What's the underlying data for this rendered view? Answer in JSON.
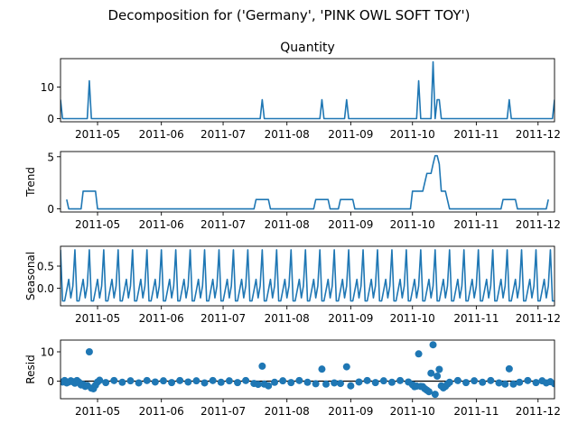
{
  "figure": {
    "suptitle": "Decomposition for ('Germany', 'PINK OWL SOFT TOY')"
  },
  "colors": {
    "series": "#1f77b4",
    "axis": "#000000",
    "resid_baseline": "#000000"
  },
  "chart_data": [
    {
      "type": "line",
      "title": "Quantity",
      "ylabel": "",
      "xlim": [
        "2011-04-13",
        "2011-12-09"
      ],
      "ylim": [
        -1,
        19
      ],
      "yticks": [
        0,
        10
      ],
      "xticks": [
        "2011-05-01",
        "2011-06-01",
        "2011-07-01",
        "2011-08-01",
        "2011-09-01",
        "2011-10-01",
        "2011-11-01",
        "2011-12-01"
      ],
      "xticklabels": [
        "2011-05",
        "2011-06",
        "2011-07",
        "2011-08",
        "2011-09",
        "2011-10",
        "2011-11",
        "2011-12"
      ],
      "points": [
        [
          "2011-04-13",
          6
        ],
        [
          "2011-04-14",
          0
        ],
        [
          "2011-04-26",
          0
        ],
        [
          "2011-04-27",
          12
        ],
        [
          "2011-04-28",
          0
        ],
        [
          "2011-07-19",
          0
        ],
        [
          "2011-07-20",
          6
        ],
        [
          "2011-07-21",
          0
        ],
        [
          "2011-08-17",
          0
        ],
        [
          "2011-08-18",
          6
        ],
        [
          "2011-08-19",
          0
        ],
        [
          "2011-08-29",
          0
        ],
        [
          "2011-08-30",
          6
        ],
        [
          "2011-08-31",
          0
        ],
        [
          "2011-10-03",
          0
        ],
        [
          "2011-10-04",
          12
        ],
        [
          "2011-10-05",
          0
        ],
        [
          "2011-10-10",
          0
        ],
        [
          "2011-10-11",
          18
        ],
        [
          "2011-10-12",
          0
        ],
        [
          "2011-10-13",
          6
        ],
        [
          "2011-10-14",
          6
        ],
        [
          "2011-10-15",
          0
        ],
        [
          "2011-11-16",
          0
        ],
        [
          "2011-11-17",
          6
        ],
        [
          "2011-11-18",
          0
        ],
        [
          "2011-12-08",
          0
        ],
        [
          "2011-12-09",
          6
        ]
      ]
    },
    {
      "type": "line",
      "title": "",
      "ylabel": "Trend",
      "xlim": [
        "2011-04-13",
        "2011-12-09"
      ],
      "ylim": [
        -0.3,
        5.5
      ],
      "yticks": [
        0,
        5
      ],
      "xticks": [
        "2011-05-01",
        "2011-06-01",
        "2011-07-01",
        "2011-08-01",
        "2011-09-01",
        "2011-10-01",
        "2011-11-01",
        "2011-12-01"
      ],
      "xticklabels": [
        "2011-05",
        "2011-06",
        "2011-07",
        "2011-08",
        "2011-09",
        "2011-10",
        "2011-11",
        "2011-12"
      ],
      "points": [
        [
          "2011-04-16",
          0.9
        ],
        [
          "2011-04-17",
          0
        ],
        [
          "2011-04-23",
          0
        ],
        [
          "2011-04-24",
          1.7
        ],
        [
          "2011-04-30",
          1.7
        ],
        [
          "2011-05-01",
          0
        ],
        [
          "2011-07-16",
          0
        ],
        [
          "2011-07-17",
          0.9
        ],
        [
          "2011-07-23",
          0.9
        ],
        [
          "2011-07-24",
          0
        ],
        [
          "2011-08-14",
          0
        ],
        [
          "2011-08-15",
          0.9
        ],
        [
          "2011-08-21",
          0.9
        ],
        [
          "2011-08-22",
          0
        ],
        [
          "2011-08-26",
          0
        ],
        [
          "2011-08-27",
          0.9
        ],
        [
          "2011-09-02",
          0.9
        ],
        [
          "2011-09-03",
          0
        ],
        [
          "2011-09-30",
          0
        ],
        [
          "2011-10-01",
          1.7
        ],
        [
          "2011-10-06",
          1.7
        ],
        [
          "2011-10-08",
          3.4
        ],
        [
          "2011-10-10",
          3.4
        ],
        [
          "2011-10-11",
          4.3
        ],
        [
          "2011-10-12",
          5.1
        ],
        [
          "2011-10-13",
          5.1
        ],
        [
          "2011-10-14",
          4.3
        ],
        [
          "2011-10-15",
          1.7
        ],
        [
          "2011-10-17",
          1.7
        ],
        [
          "2011-10-19",
          0
        ],
        [
          "2011-11-13",
          0
        ],
        [
          "2011-11-14",
          0.9
        ],
        [
          "2011-11-20",
          0.9
        ],
        [
          "2011-11-21",
          0
        ],
        [
          "2011-12-05",
          0
        ],
        [
          "2011-12-06",
          0.9
        ]
      ]
    },
    {
      "type": "line",
      "title": "",
      "ylabel": "Seasonal",
      "xlim": [
        "2011-04-13",
        "2011-12-09"
      ],
      "ylim": [
        -0.4,
        0.95
      ],
      "yticks": [
        0.0,
        0.5
      ],
      "yticklabels": [
        "0.0",
        "0.5"
      ],
      "xticks": [
        "2011-05-01",
        "2011-06-01",
        "2011-07-01",
        "2011-08-01",
        "2011-09-01",
        "2011-10-01",
        "2011-11-01",
        "2011-12-01"
      ],
      "xticklabels": [
        "2011-05",
        "2011-06",
        "2011-07",
        "2011-08",
        "2011-09",
        "2011-10",
        "2011-11",
        "2011-12"
      ],
      "period_start": "2011-04-13",
      "period_days": 7,
      "cycle": [
        0.87,
        -0.29,
        -0.29,
        -0.05,
        0.2,
        -0.22,
        0.05
      ]
    },
    {
      "type": "scatter",
      "title": "",
      "ylabel": "Resid",
      "xlim": [
        "2011-04-13",
        "2011-12-09"
      ],
      "ylim": [
        -6,
        14
      ],
      "yticks": [
        0,
        10
      ],
      "xticks": [
        "2011-05-01",
        "2011-06-01",
        "2011-07-01",
        "2011-08-01",
        "2011-09-01",
        "2011-10-01",
        "2011-11-01",
        "2011-12-01"
      ],
      "xticklabels": [
        "2011-05",
        "2011-06",
        "2011-07",
        "2011-08",
        "2011-09",
        "2011-10",
        "2011-11",
        "2011-12"
      ],
      "baseline": 0,
      "points": [
        [
          "2011-04-14",
          -0.3
        ],
        [
          "2011-04-15",
          0.2
        ],
        [
          "2011-04-16",
          -0.6
        ],
        [
          "2011-04-17",
          -0.3
        ],
        [
          "2011-04-18",
          0.1
        ],
        [
          "2011-04-19",
          -0.2
        ],
        [
          "2011-04-20",
          -0.7
        ],
        [
          "2011-04-21",
          0.2
        ],
        [
          "2011-04-22",
          -0.4
        ],
        [
          "2011-04-23",
          -1.3
        ],
        [
          "2011-04-24",
          -1.1
        ],
        [
          "2011-04-25",
          -1.8
        ],
        [
          "2011-04-26",
          -1.5
        ],
        [
          "2011-04-27",
          10.0
        ],
        [
          "2011-04-28",
          -2.4
        ],
        [
          "2011-04-29",
          -2.6
        ],
        [
          "2011-04-30",
          -1.4
        ],
        [
          "2011-05-01",
          -0.3
        ],
        [
          "2011-05-02",
          0.3
        ],
        [
          "2011-05-05",
          -0.5
        ],
        [
          "2011-05-09",
          0.2
        ],
        [
          "2011-05-13",
          -0.4
        ],
        [
          "2011-05-17",
          0.1
        ],
        [
          "2011-05-21",
          -0.6
        ],
        [
          "2011-05-25",
          0.2
        ],
        [
          "2011-05-29",
          -0.3
        ],
        [
          "2011-06-02",
          0.1
        ],
        [
          "2011-06-06",
          -0.5
        ],
        [
          "2011-06-10",
          0.2
        ],
        [
          "2011-06-14",
          -0.3
        ],
        [
          "2011-06-18",
          0.1
        ],
        [
          "2011-06-22",
          -0.6
        ],
        [
          "2011-06-26",
          0.2
        ],
        [
          "2011-06-30",
          -0.4
        ],
        [
          "2011-07-04",
          0.1
        ],
        [
          "2011-07-08",
          -0.5
        ],
        [
          "2011-07-12",
          0.2
        ],
        [
          "2011-07-16",
          -0.8
        ],
        [
          "2011-07-18",
          -1.1
        ],
        [
          "2011-07-20",
          5.1
        ],
        [
          "2011-07-21",
          -1.0
        ],
        [
          "2011-07-23",
          -1.6
        ],
        [
          "2011-07-26",
          -0.4
        ],
        [
          "2011-07-30",
          0.1
        ],
        [
          "2011-08-03",
          -0.5
        ],
        [
          "2011-08-07",
          0.2
        ],
        [
          "2011-08-11",
          -0.4
        ],
        [
          "2011-08-15",
          -0.9
        ],
        [
          "2011-08-18",
          4.1
        ],
        [
          "2011-08-20",
          -1.0
        ],
        [
          "2011-08-24",
          -0.6
        ],
        [
          "2011-08-27",
          -0.8
        ],
        [
          "2011-08-30",
          4.9
        ],
        [
          "2011-09-01",
          -1.6
        ],
        [
          "2011-09-05",
          -0.3
        ],
        [
          "2011-09-09",
          0.2
        ],
        [
          "2011-09-13",
          -0.5
        ],
        [
          "2011-09-17",
          0.1
        ],
        [
          "2011-09-21",
          -0.4
        ],
        [
          "2011-09-25",
          0.2
        ],
        [
          "2011-09-29",
          -0.3
        ],
        [
          "2011-10-01",
          -1.2
        ],
        [
          "2011-10-02",
          -1.9
        ],
        [
          "2011-10-03",
          -1.7
        ],
        [
          "2011-10-04",
          9.3
        ],
        [
          "2011-10-05",
          -1.8
        ],
        [
          "2011-10-06",
          -1.9
        ],
        [
          "2011-10-07",
          -2.6
        ],
        [
          "2011-10-08",
          -3.1
        ],
        [
          "2011-10-09",
          -3.6
        ],
        [
          "2011-10-10",
          2.7
        ],
        [
          "2011-10-11",
          12.4
        ],
        [
          "2011-10-12",
          -4.5
        ],
        [
          "2011-10-13",
          1.7
        ],
        [
          "2011-10-14",
          4.0
        ],
        [
          "2011-10-15",
          -1.6
        ],
        [
          "2011-10-16",
          -2.3
        ],
        [
          "2011-10-17",
          -1.8
        ],
        [
          "2011-10-18",
          -1.0
        ],
        [
          "2011-10-19",
          -0.4
        ],
        [
          "2011-10-23",
          0.2
        ],
        [
          "2011-10-27",
          -0.5
        ],
        [
          "2011-10-31",
          0.1
        ],
        [
          "2011-11-04",
          -0.4
        ],
        [
          "2011-11-08",
          0.2
        ],
        [
          "2011-11-12",
          -0.6
        ],
        [
          "2011-11-15",
          -1.0
        ],
        [
          "2011-11-17",
          4.2
        ],
        [
          "2011-11-19",
          -1.0
        ],
        [
          "2011-11-22",
          -0.4
        ],
        [
          "2011-11-26",
          0.2
        ],
        [
          "2011-11-30",
          -0.5
        ],
        [
          "2011-12-03",
          0.1
        ],
        [
          "2011-12-05",
          -0.6
        ],
        [
          "2011-12-07",
          -0.2
        ],
        [
          "2011-12-09",
          -0.9
        ]
      ]
    }
  ]
}
